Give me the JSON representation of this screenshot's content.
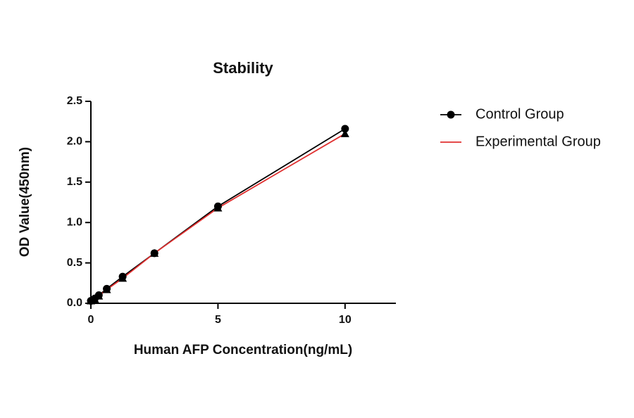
{
  "chart_data": {
    "type": "line",
    "title": "Stability",
    "x_label": "Human AFP Concentration(ng/mL)",
    "y_label": "OD Value(450nm)",
    "x": [
      0,
      0.156,
      0.3125,
      0.625,
      1.25,
      2.5,
      5,
      10
    ],
    "series": [
      {
        "name": "Control Group",
        "color": "#000000",
        "marker": "circle",
        "marker_color": "#000000",
        "values": [
          0.03,
          0.06,
          0.1,
          0.18,
          0.33,
          0.62,
          1.2,
          2.16
        ]
      },
      {
        "name": "Experimental Group",
        "color": "#e03030",
        "marker": "triangle",
        "marker_color": "#000000",
        "values": [
          0.03,
          0.05,
          0.09,
          0.17,
          0.31,
          0.62,
          1.18,
          2.1
        ]
      }
    ],
    "xlim": [
      0,
      12
    ],
    "xticks": [
      0,
      5,
      10
    ],
    "ylim": [
      0,
      2.5
    ],
    "yticks": [
      {
        "value": 0,
        "label": "0.0"
      },
      0.5,
      {
        "value": 1,
        "label": "1.0"
      },
      1.5,
      {
        "value": 2,
        "label": "2.0"
      },
      2.5
    ],
    "grid": false,
    "legend": "right"
  }
}
